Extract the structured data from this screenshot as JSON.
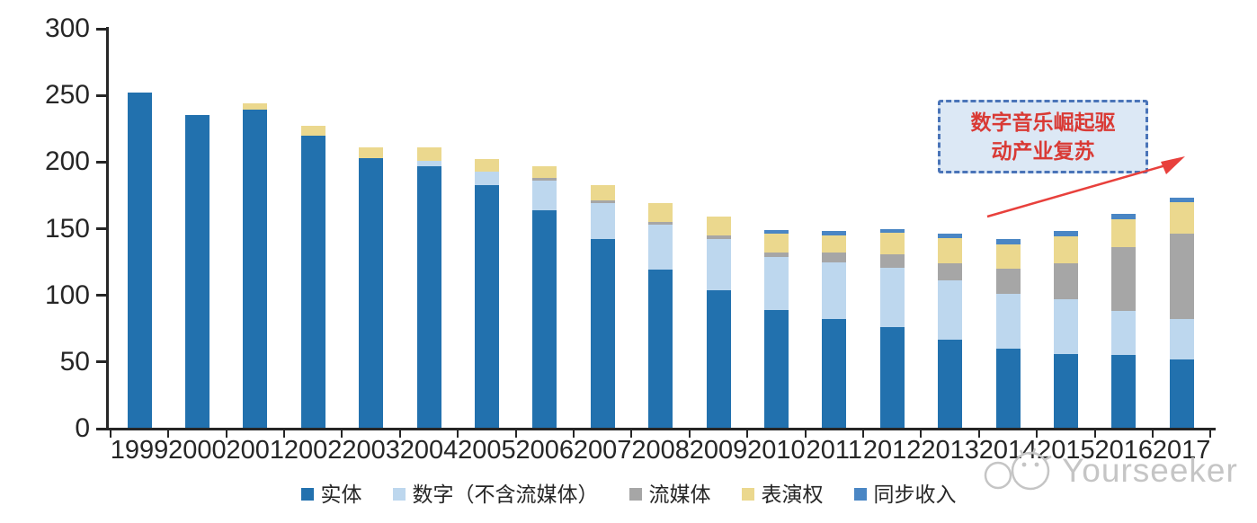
{
  "chart_data": {
    "type": "bar",
    "stacked": true,
    "title": "",
    "xlabel": "",
    "ylabel": "",
    "ylim": [
      0,
      300
    ],
    "yticks": [
      0,
      50,
      100,
      150,
      200,
      250,
      300
    ],
    "grid": false,
    "legend_position": "bottom",
    "categories": [
      "1999",
      "2000",
      "2001",
      "2002",
      "2003",
      "2004",
      "2005",
      "2006",
      "2007",
      "2008",
      "2009",
      "2010",
      "2011",
      "2012",
      "2013",
      "2014",
      "2015",
      "2016",
      "2017"
    ],
    "series": [
      {
        "name": "实体",
        "key": "physical",
        "color": "#2271ae",
        "values": [
          252,
          235,
          239,
          220,
          203,
          197,
          183,
          164,
          142,
          119,
          104,
          89,
          82,
          76,
          67,
          60,
          56,
          55,
          52
        ]
      },
      {
        "name": "数字（不含流媒体）",
        "key": "digital-excl-streaming",
        "color": "#bdd7ee",
        "values": [
          0,
          0,
          0,
          0,
          0,
          4,
          10,
          22,
          27,
          34,
          38,
          40,
          43,
          45,
          44,
          41,
          41,
          33,
          30
        ]
      },
      {
        "name": "流媒体",
        "key": "streaming",
        "color": "#a6a6a6",
        "values": [
          0,
          0,
          0,
          0,
          0,
          0,
          0,
          2,
          2,
          2,
          3,
          3,
          7,
          10,
          13,
          19,
          27,
          48,
          64
        ]
      },
      {
        "name": "表演权",
        "key": "performance-rights",
        "color": "#ebd88e",
        "values": [
          0,
          0,
          5,
          7,
          8,
          10,
          9,
          9,
          12,
          14,
          14,
          14,
          13,
          16,
          19,
          18,
          20,
          21,
          24
        ]
      },
      {
        "name": "同步收入",
        "key": "sync-revenue",
        "color": "#4a86c4",
        "values": [
          0,
          0,
          0,
          0,
          0,
          0,
          0,
          0,
          0,
          0,
          0,
          3,
          3,
          3,
          3,
          4,
          4,
          4,
          3
        ]
      }
    ]
  },
  "annotation": {
    "line1": "数字音乐崛起驱",
    "line2": "动产业复苏",
    "box_fill": "#dce8f5",
    "border_color": "#4a74b8",
    "text_color": "#d93a35",
    "arrow_color": "#e8403c"
  },
  "watermark": {
    "text": "Yourseeker",
    "color": "#c5c5c5"
  },
  "colors": {
    "axis": "#262626"
  }
}
